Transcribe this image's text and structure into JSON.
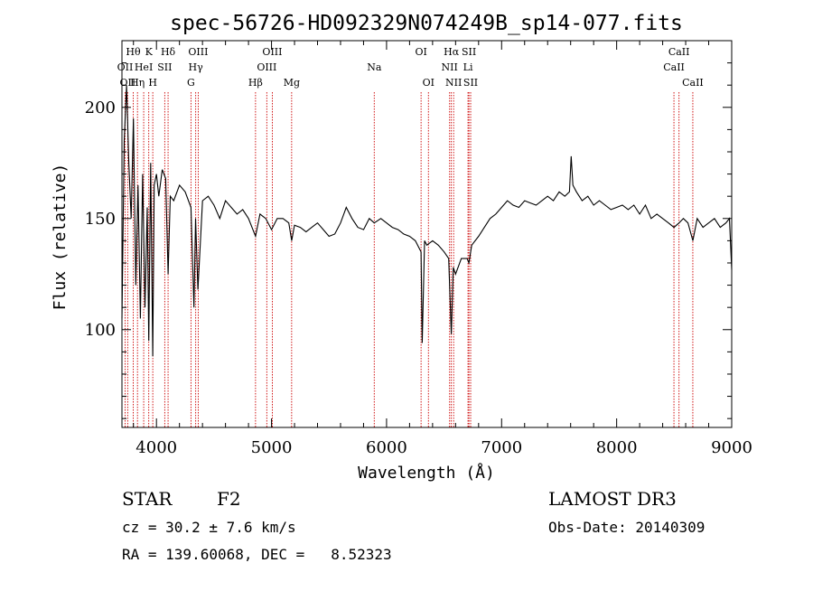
{
  "chart_data": {
    "type": "line",
    "title": "spec-56726-HD092329N074249B_sp14-077.fits",
    "xlabel": "Wavelength (Å)",
    "ylabel": "Flux (relative)",
    "xlim": [
      3700,
      9000
    ],
    "ylim": [
      56,
      230
    ],
    "xticks": [
      {
        "value": 4000,
        "label": "4000"
      },
      {
        "value": 5000,
        "label": "5000"
      },
      {
        "value": 6000,
        "label": "6000"
      },
      {
        "value": 7000,
        "label": "7000"
      },
      {
        "value": 8000,
        "label": "8000"
      },
      {
        "value": 9000,
        "label": "9000"
      }
    ],
    "yticks": [
      {
        "value": 100,
        "label": "100"
      },
      {
        "value": 150,
        "label": "150"
      },
      {
        "value": 200,
        "label": "200"
      }
    ],
    "grid": false,
    "line_color": "#000000",
    "marker_color": "#cc0000",
    "series": [
      {
        "x": [
          3700,
          3720,
          3740,
          3760,
          3780,
          3800,
          3820,
          3840,
          3860,
          3880,
          3900,
          3920,
          3933,
          3950,
          3968,
          3980,
          4000,
          4020,
          4050,
          4080,
          4101,
          4120,
          4150,
          4200,
          4250,
          4300,
          4326,
          4340,
          4360,
          4400,
          4450,
          4500,
          4550,
          4600,
          4650,
          4700,
          4750,
          4800,
          4861,
          4900,
          4950,
          5000,
          5050,
          5100,
          5150,
          5175,
          5200,
          5250,
          5300,
          5350,
          5400,
          5450,
          5500,
          5550,
          5600,
          5650,
          5700,
          5750,
          5800,
          5850,
          5893,
          5950,
          6000,
          6050,
          6100,
          6150,
          6200,
          6250,
          6300,
          6310,
          6330,
          6350,
          6400,
          6450,
          6500,
          6540,
          6563,
          6580,
          6600,
          6650,
          6700,
          6716,
          6740,
          6800,
          6850,
          6900,
          6950,
          7000,
          7050,
          7100,
          7150,
          7200,
          7250,
          7300,
          7350,
          7400,
          7450,
          7500,
          7550,
          7590,
          7605,
          7620,
          7650,
          7700,
          7750,
          7800,
          7850,
          7900,
          7950,
          8000,
          8050,
          8100,
          8150,
          8200,
          8250,
          8300,
          8350,
          8400,
          8450,
          8498,
          8542,
          8580,
          8620,
          8662,
          8700,
          8750,
          8800,
          8850,
          8900,
          8950,
          8980,
          9000
        ],
        "y": [
          105,
          185,
          210,
          175,
          150,
          195,
          120,
          165,
          105,
          170,
          110,
          155,
          95,
          175,
          88,
          165,
          170,
          160,
          172,
          168,
          125,
          160,
          158,
          165,
          162,
          155,
          110,
          150,
          118,
          158,
          160,
          156,
          150,
          158,
          155,
          152,
          154,
          150,
          142,
          152,
          150,
          145,
          150,
          150,
          148,
          140,
          147,
          146,
          144,
          146,
          148,
          145,
          142,
          143,
          148,
          155,
          150,
          146,
          145,
          150,
          148,
          150,
          148,
          146,
          145,
          143,
          142,
          140,
          135,
          94,
          140,
          138,
          140,
          138,
          135,
          132,
          98,
          128,
          125,
          132,
          132,
          130,
          138,
          142,
          146,
          150,
          152,
          155,
          158,
          156,
          155,
          158,
          157,
          156,
          158,
          160,
          158,
          162,
          160,
          162,
          178,
          165,
          162,
          158,
          160,
          156,
          158,
          156,
          154,
          155,
          156,
          154,
          156,
          152,
          156,
          150,
          152,
          150,
          148,
          146,
          148,
          150,
          148,
          140,
          150,
          146,
          148,
          150,
          146,
          148,
          150,
          127
        ]
      }
    ],
    "spectral_lines": [
      {
        "wavelength": 3727,
        "label": "OII",
        "row": 2
      },
      {
        "wavelength": 3750,
        "label": "OII",
        "row": 3
      },
      {
        "wavelength": 3798,
        "label": "Hθ",
        "row": 1
      },
      {
        "wavelength": 3835,
        "label": "Hη",
        "row": 3
      },
      {
        "wavelength": 3889,
        "label": "HeI",
        "row": 2
      },
      {
        "wavelength": 3933,
        "label": "K",
        "row": 1
      },
      {
        "wavelength": 3968,
        "label": "H",
        "row": 3
      },
      {
        "wavelength": 4072,
        "label": "SII",
        "row": 2
      },
      {
        "wavelength": 4101,
        "label": "Hδ",
        "row": 1
      },
      {
        "wavelength": 4300,
        "label": "G",
        "row": 3
      },
      {
        "wavelength": 4341,
        "label": "Hγ",
        "row": 2
      },
      {
        "wavelength": 4363,
        "label": "OIII",
        "row": 1
      },
      {
        "wavelength": 4861,
        "label": "Hβ",
        "row": 3
      },
      {
        "wavelength": 4959,
        "label": "OIII",
        "row": 2
      },
      {
        "wavelength": 5007,
        "label": "OIII",
        "row": 1
      },
      {
        "wavelength": 5175,
        "label": "Mg",
        "row": 3
      },
      {
        "wavelength": 5893,
        "label": "Na",
        "row": 2
      },
      {
        "wavelength": 6300,
        "label": "OI",
        "row": 1
      },
      {
        "wavelength": 6364,
        "label": "OI",
        "row": 3
      },
      {
        "wavelength": 6548,
        "label": "NII",
        "row": 2
      },
      {
        "wavelength": 6563,
        "label": "Hα",
        "row": 1
      },
      {
        "wavelength": 6583,
        "label": "NII",
        "row": 3
      },
      {
        "wavelength": 6708,
        "label": "Li",
        "row": 2
      },
      {
        "wavelength": 6716,
        "label": "SII",
        "row": 1
      },
      {
        "wavelength": 6731,
        "label": "SII",
        "row": 3
      },
      {
        "wavelength": 8498,
        "label": "CaII",
        "row": 2
      },
      {
        "wavelength": 8542,
        "label": "CaII",
        "row": 1
      },
      {
        "wavelength": 8662,
        "label": "CaII",
        "row": 3
      }
    ]
  },
  "info": {
    "object_type": "STAR",
    "subclass": "F2",
    "redshift": "cz = 30.2 ± 7.6 km/s",
    "coordinates": "RA = 139.60068, DEC =   8.52323",
    "survey": "LAMOST DR3",
    "obs_date": "Obs-Date: 20140309"
  }
}
